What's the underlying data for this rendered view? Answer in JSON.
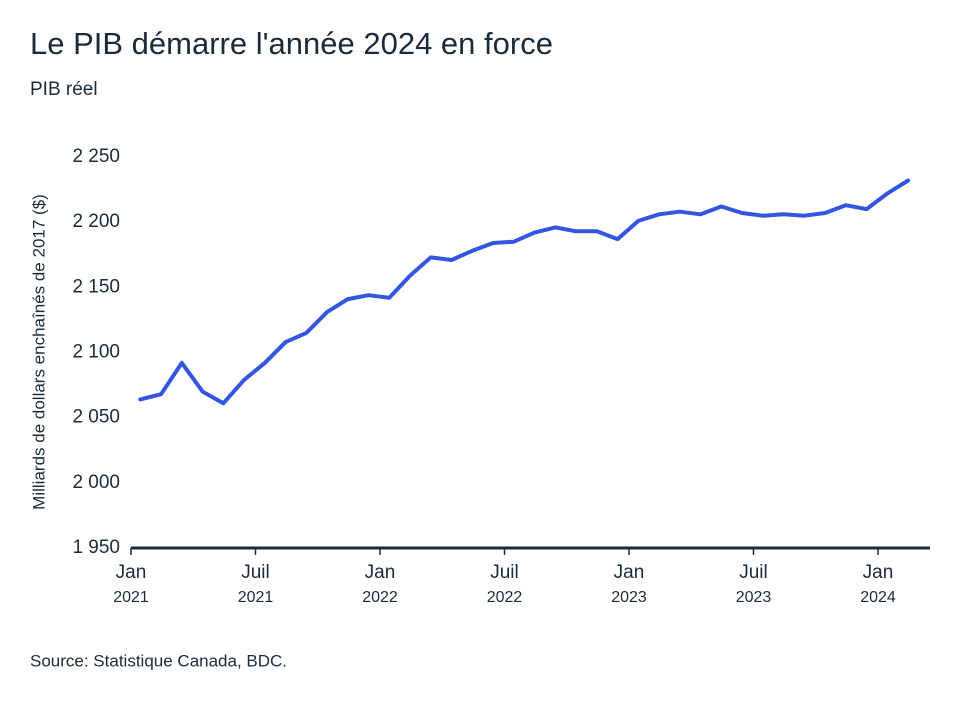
{
  "chart_data": {
    "type": "line",
    "title": "Le PIB démarre l'année 2024 en force",
    "subtitle": "PIB réel",
    "y_label": "Milliards de dollars enchaînés de 2017 ($)",
    "source": "Source: Statistique Canada, BDC.",
    "x": [
      "2021-01",
      "2021-02",
      "2021-03",
      "2021-04",
      "2021-05",
      "2021-06",
      "2021-07",
      "2021-08",
      "2021-09",
      "2021-10",
      "2021-11",
      "2021-12",
      "2022-01",
      "2022-02",
      "2022-03",
      "2022-04",
      "2022-05",
      "2022-06",
      "2022-07",
      "2022-08",
      "2022-09",
      "2022-10",
      "2022-11",
      "2022-12",
      "2023-01",
      "2023-02",
      "2023-03",
      "2023-04",
      "2023-05",
      "2023-06",
      "2023-07",
      "2023-08",
      "2023-09",
      "2023-10",
      "2023-11",
      "2023-12",
      "2024-01",
      "2024-02"
    ],
    "series": [
      {
        "name": "PIB réel",
        "color": "#3355e0",
        "values": [
          2064,
          2068,
          2092,
          2070,
          2061,
          2079,
          2092,
          2108,
          2115,
          2131,
          2141,
          2144,
          2142,
          2159,
          2173,
          2171,
          2178,
          2184,
          2185,
          2192,
          2196,
          2193,
          2193,
          2187,
          2201,
          2206,
          2208,
          2206,
          2212,
          2207,
          2205,
          2206,
          2205,
          2207,
          2213,
          2210,
          2222,
          2232
        ]
      }
    ],
    "ylim": [
      1950,
      2250
    ],
    "yticks": [
      {
        "value": 1950,
        "label": "1 950"
      },
      {
        "value": 2000,
        "label": "2 000"
      },
      {
        "value": 2050,
        "label": "2 050"
      },
      {
        "value": 2100,
        "label": "2 100"
      },
      {
        "value": 2150,
        "label": "2 150"
      },
      {
        "value": 2200,
        "label": "2 200"
      },
      {
        "value": 2250,
        "label": "2 250"
      }
    ],
    "xticks": [
      {
        "value": "2021-01",
        "label": [
          "Jan",
          "2021"
        ]
      },
      {
        "value": "2021-07",
        "label": [
          "Juil",
          "2021"
        ]
      },
      {
        "value": "2022-01",
        "label": [
          "Jan",
          "2022"
        ]
      },
      {
        "value": "2022-07",
        "label": [
          "Juil",
          "2022"
        ]
      },
      {
        "value": "2023-01",
        "label": [
          "Jan",
          "2023"
        ]
      },
      {
        "value": "2023-07",
        "label": [
          "Juil",
          "2023"
        ]
      },
      {
        "value": "2024-01",
        "label": [
          "Jan",
          "2024"
        ]
      }
    ],
    "grid": false
  }
}
